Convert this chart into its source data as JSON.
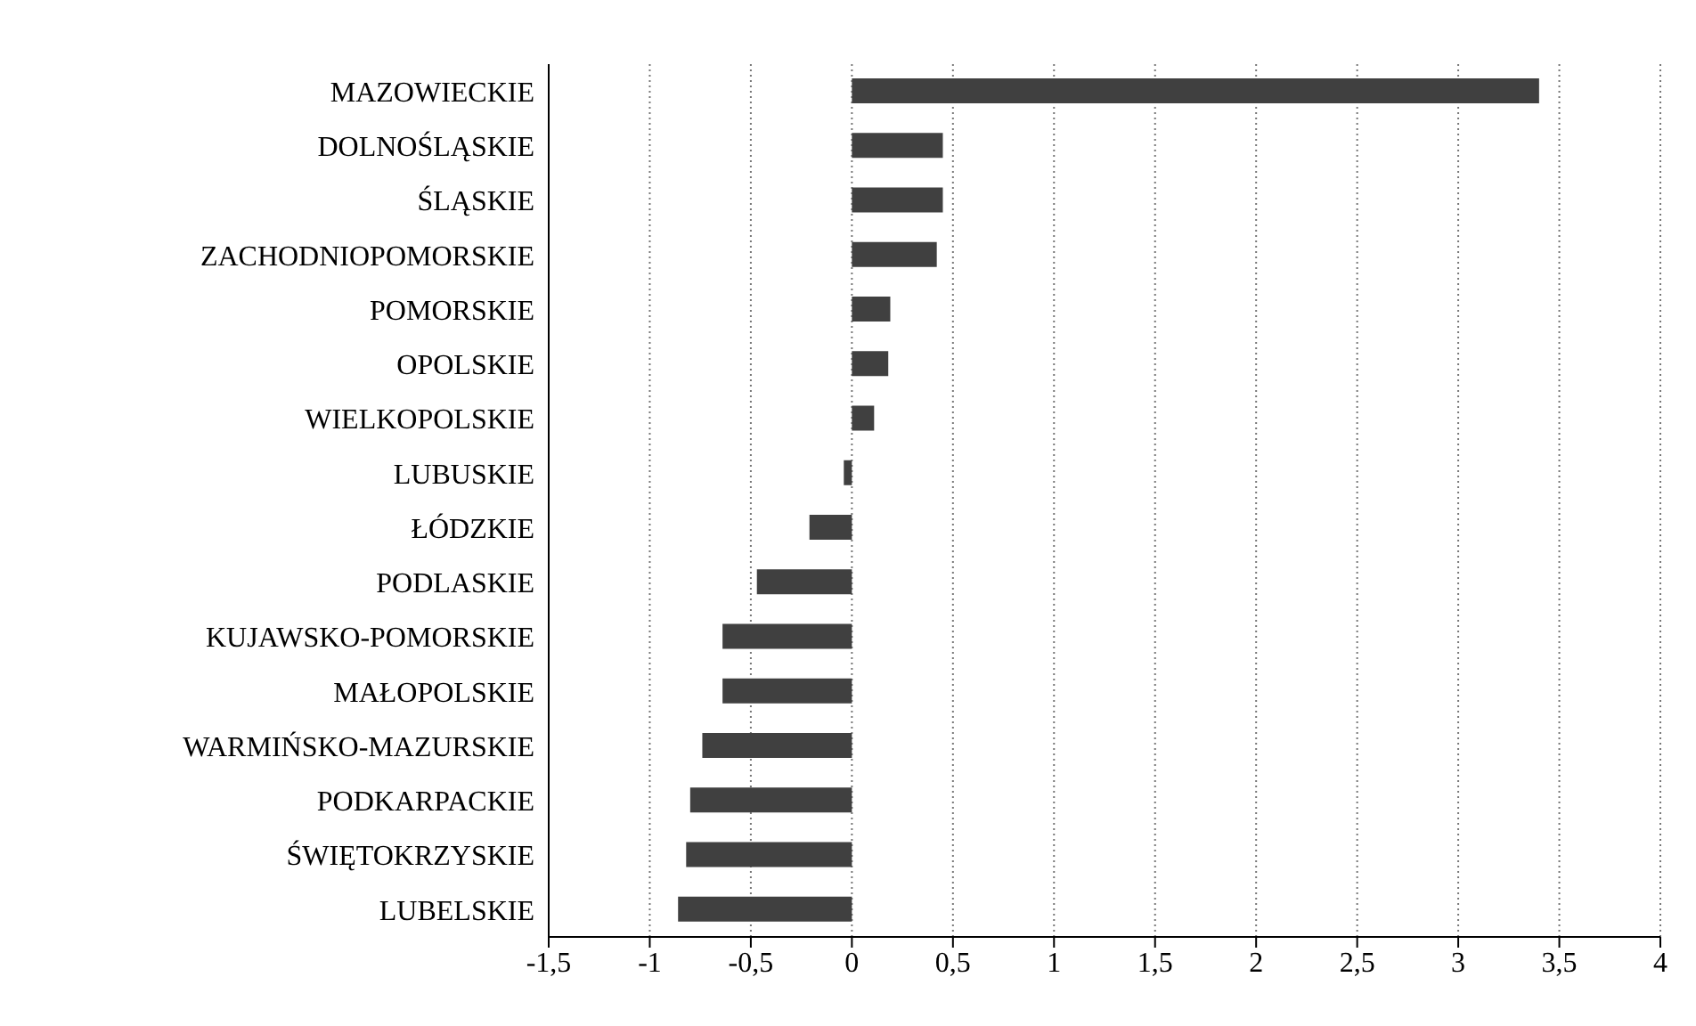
{
  "chart_data": {
    "type": "bar",
    "orientation": "horizontal",
    "categories": [
      "MAZOWIECKIE",
      "DOLNOŚLĄSKIE",
      "ŚLĄSKIE",
      "ZACHODNIOPOMORSKIE",
      "POMORSKIE",
      "OPOLSKIE",
      "WIELKOPOLSKIE",
      "LUBUSKIE",
      "ŁÓDZKIE",
      "PODLASKIE",
      "KUJAWSKO-POMORSKIE",
      "MAŁOPOLSKIE",
      "WARMIŃSKO-MAZURSKIE",
      "PODKARPACKIE",
      "ŚWIĘTOKRZYSKIE",
      "LUBELSKIE"
    ],
    "values": [
      3.4,
      0.45,
      0.45,
      0.42,
      0.19,
      0.18,
      0.11,
      -0.04,
      -0.21,
      -0.47,
      -0.64,
      -0.64,
      -0.74,
      -0.8,
      -0.82,
      -0.86
    ],
    "color": "#404040",
    "xlim": [
      -1.5,
      4
    ],
    "xticks": [
      {
        "value": -1.5,
        "label": "-1,5"
      },
      -1,
      {
        "value": -0.5,
        "label": "-0,5"
      },
      0,
      {
        "value": 0.5,
        "label": "0,5"
      },
      1,
      {
        "value": 1.5,
        "label": "1,5"
      },
      2,
      {
        "value": 2.5,
        "label": "2,5"
      },
      3,
      {
        "value": 3.5,
        "label": "3,5"
      },
      4
    ],
    "grid": "x",
    "legend": false
  }
}
